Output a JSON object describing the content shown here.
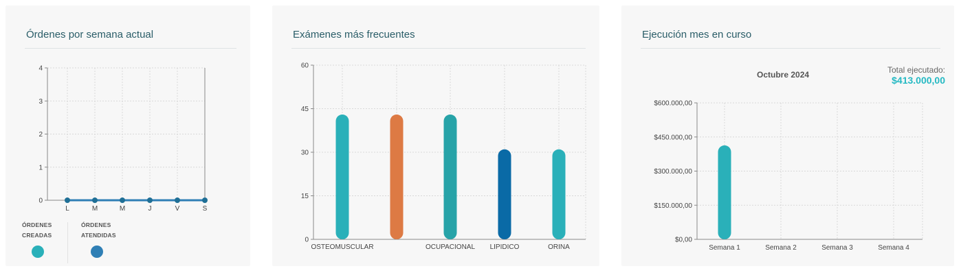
{
  "colors": {
    "teal": "#2ab0b9",
    "orange": "#dd7a44",
    "dark_teal": "#27a3a8",
    "blue": "#0a6aa6",
    "legend_blue": "#2f7fb5",
    "line": "#2a8f9a",
    "title": "#2a5d68",
    "total": "#25b9c3"
  },
  "cards": {
    "orders": {
      "title": "Órdenes por semana actual",
      "legend": [
        {
          "line1": "ÓRDENES",
          "line2": "CREADAS",
          "color": "#2ab0b9",
          "icon": "teal-dot"
        },
        {
          "line1": "ÓRDENES",
          "line2": "ATENDIDAS",
          "color": "#2f7fb5",
          "icon": "blue-dot"
        }
      ]
    },
    "exams": {
      "title": "Exámenes más frecuentes"
    },
    "execution": {
      "title": "Ejecución mes en curso",
      "month": "Octubre 2024",
      "total_label": "Total ejecutado:",
      "total_value": "$413.000,00"
    }
  },
  "chart_data": [
    {
      "type": "line",
      "title": "Órdenes por semana actual",
      "x": [
        "L",
        "M",
        "M",
        "J",
        "V",
        "S"
      ],
      "yticks": [
        "0",
        "1",
        "2",
        "3",
        "4"
      ],
      "ylim": [
        0,
        4
      ],
      "grid": true,
      "series": [
        {
          "name": "ÓRDENES CREADAS",
          "values": [
            0,
            0,
            0,
            0,
            0,
            0
          ]
        },
        {
          "name": "ÓRDENES ATENDIDAS",
          "values": [
            0,
            0,
            0,
            0,
            0,
            0
          ]
        }
      ]
    },
    {
      "type": "bar",
      "title": "Exámenes más frecuentes",
      "categories": [
        "OSTEOMUSCULAR",
        "",
        "OCUPACIONAL",
        "LIPIDICO",
        "ORINA"
      ],
      "values": [
        43,
        43,
        43,
        31,
        31
      ],
      "bar_colors": [
        "#2ab0b9",
        "#dd7a44",
        "#27a3a8",
        "#0a6aa6",
        "#2ab0b9"
      ],
      "yticks": [
        "0",
        "15",
        "30",
        "45",
        "60"
      ],
      "ylim": [
        0,
        60
      ],
      "grid": true
    },
    {
      "type": "bar",
      "title": "Ejecución mes en curso",
      "categories": [
        "Semana 1",
        "Semana 2",
        "Semana 3",
        "Semana 4"
      ],
      "values": [
        413000,
        0,
        0,
        0
      ],
      "bar_colors": [
        "#2ab0b9",
        "#2ab0b9",
        "#2ab0b9",
        "#2ab0b9"
      ],
      "yticks": [
        "$0,00",
        "$150.000,00",
        "$300.000,00",
        "$450.000,00",
        "$600.000,00"
      ],
      "ylim": [
        0,
        600000
      ],
      "grid": true
    }
  ]
}
